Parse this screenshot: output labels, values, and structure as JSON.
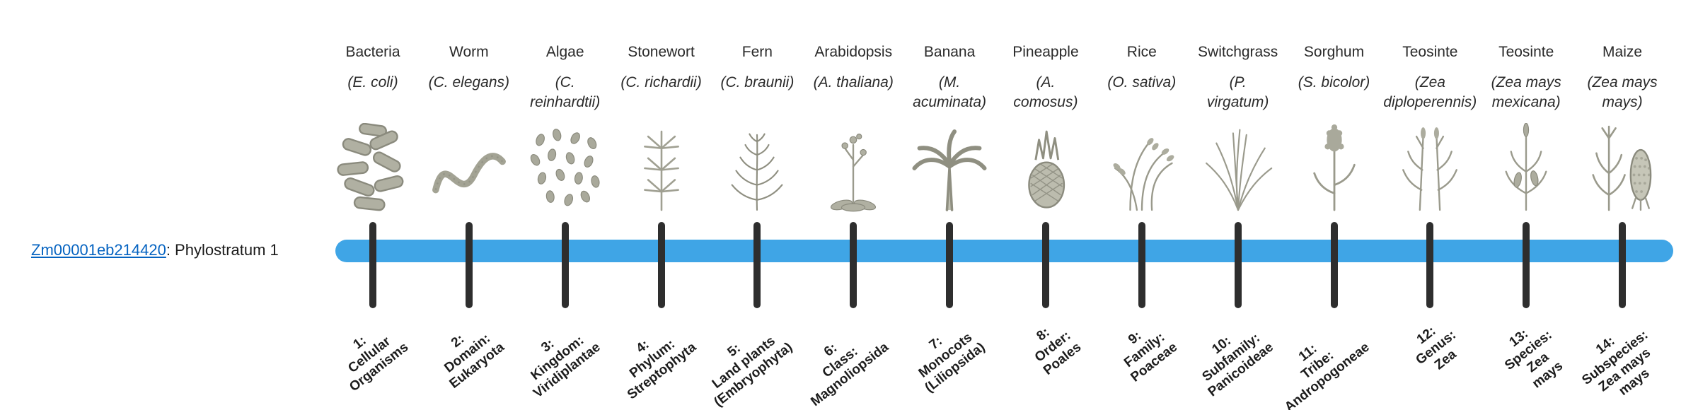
{
  "gene": {
    "id": "Zm00001eb214420",
    "suffix": ": Phylostratum 1"
  },
  "colors": {
    "bar": "#3FA5E6",
    "tick": "#2e2e2e",
    "link": "#0563C1",
    "text": "#262626"
  },
  "columns": [
    {
      "organism": {
        "name": "Bacteria",
        "sci_lines": [
          "(E. coli)"
        ],
        "icon": "bacteria-icon"
      },
      "stratum": {
        "label": "1: Cellular Organisms",
        "lines": [
          "1:",
          "Cellular",
          "Organisms"
        ]
      }
    },
    {
      "organism": {
        "name": "Worm",
        "sci_lines": [
          "(C. elegans)"
        ],
        "icon": "worm-icon"
      },
      "stratum": {
        "label": "2: Domain: Eukaryota",
        "lines": [
          "2:",
          "Domain:",
          "Eukaryota"
        ]
      }
    },
    {
      "organism": {
        "name": "Algae",
        "sci_lines": [
          "(C.",
          "reinhardtii)"
        ],
        "icon": "algae-icon"
      },
      "stratum": {
        "label": "3: Kingdom: Viridiplantae",
        "lines": [
          "3:",
          "Kingdom:",
          "Viridiplantae"
        ]
      }
    },
    {
      "organism": {
        "name": "Stonewort",
        "sci_lines": [
          "(C. richardii)"
        ],
        "icon": "stonewort-icon"
      },
      "stratum": {
        "label": "4: Phylum: Streptophyta",
        "lines": [
          "4:",
          "Phylum:",
          "Streptophyta"
        ]
      }
    },
    {
      "organism": {
        "name": "Fern",
        "sci_lines": [
          "(C. braunii)"
        ],
        "icon": "fern-icon"
      },
      "stratum": {
        "label": "5: Land plants (Embryophyta)",
        "lines": [
          "5:",
          "Land plants",
          "(Embryophyta)"
        ]
      }
    },
    {
      "organism": {
        "name": "Arabidopsis",
        "sci_lines": [
          "(A. thaliana)"
        ],
        "icon": "arabidopsis-icon"
      },
      "stratum": {
        "label": "6: Class: Magnoliopsida",
        "lines": [
          "6:",
          "Class:",
          "Magnoliopsida"
        ]
      }
    },
    {
      "organism": {
        "name": "Banana",
        "sci_lines": [
          "(M.",
          "acuminata)"
        ],
        "icon": "banana-icon"
      },
      "stratum": {
        "label": "7: Monocots (Liliopsida)",
        "lines": [
          "7:",
          "Monocots",
          "(Liliopsida)"
        ]
      }
    },
    {
      "organism": {
        "name": "Pineapple",
        "sci_lines": [
          "(A.",
          "comosus)"
        ],
        "icon": "pineapple-icon"
      },
      "stratum": {
        "label": "8: Order: Poales",
        "lines": [
          "8:",
          "Order:",
          "Poales"
        ]
      }
    },
    {
      "organism": {
        "name": "Rice",
        "sci_lines": [
          "(O. sativa)"
        ],
        "icon": "rice-icon"
      },
      "stratum": {
        "label": "9: Family: Poaceae",
        "lines": [
          "9:",
          "Family:",
          "Poaceae"
        ]
      }
    },
    {
      "organism": {
        "name": "Switchgrass",
        "sci_lines": [
          "(P.",
          "virgatum)"
        ],
        "icon": "switchgrass-icon"
      },
      "stratum": {
        "label": "10: Subfamily: Panicoideae",
        "lines": [
          "10:",
          "Subfamily:",
          "Panicoideae"
        ]
      }
    },
    {
      "organism": {
        "name": "Sorghum",
        "sci_lines": [
          "(S. bicolor)"
        ],
        "icon": "sorghum-icon"
      },
      "stratum": {
        "label": "11: Tribe: Andropogoneae",
        "lines": [
          "11:",
          "Tribe:",
          "Andropogoneae"
        ]
      }
    },
    {
      "organism": {
        "name": "Teosinte",
        "sci_lines": [
          "(Zea",
          "diploperennis)"
        ],
        "icon": "teosinte-diploperennis-icon"
      },
      "stratum": {
        "label": "12: Genus: Zea",
        "lines": [
          "12:",
          "Genus:",
          "Zea"
        ]
      }
    },
    {
      "organism": {
        "name": "Teosinte",
        "sci_lines": [
          "(Zea mays",
          "mexicana)"
        ],
        "icon": "teosinte-mexicana-icon"
      },
      "stratum": {
        "label": "13: Species: Zea mays",
        "lines": [
          "13:",
          "Species:",
          "Zea",
          "mays"
        ]
      }
    },
    {
      "organism": {
        "name": "Maize",
        "sci_lines": [
          "(Zea mays",
          "mays)"
        ],
        "icon": "maize-icon"
      },
      "stratum": {
        "label": "14: Subspecies: Zea mays mays",
        "lines": [
          "14:",
          "Subspecies:",
          "Zea mays",
          "mays"
        ]
      }
    }
  ]
}
